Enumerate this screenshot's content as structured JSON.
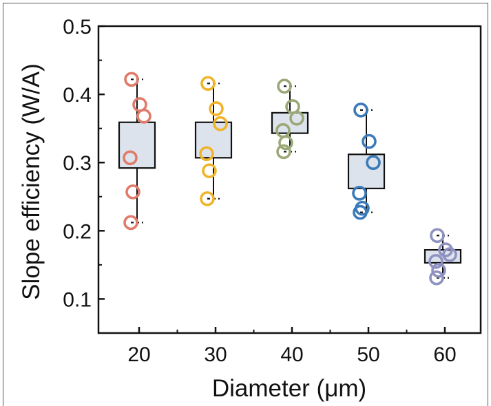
{
  "chart_data": {
    "type": "box",
    "xlabel": "Diameter (μm)",
    "ylabel": "Slope efficiency (W/A)",
    "ylim": [
      0.05,
      0.5
    ],
    "yticks": [
      "0.1",
      "0.2",
      "0.3",
      "0.4",
      "0.5"
    ],
    "categories": [
      "20",
      "30",
      "40",
      "50",
      "60"
    ],
    "groups": [
      {
        "category": "20",
        "color": "#e07b6a",
        "points": [
          0.422,
          0.385,
          0.368,
          0.307,
          0.257,
          0.212
        ],
        "q1": 0.292,
        "q3": 0.359,
        "whisker_low": 0.212,
        "whisker_high": 0.422
      },
      {
        "category": "30",
        "color": "#f0b429",
        "points": [
          0.416,
          0.379,
          0.357,
          0.313,
          0.288,
          0.247
        ],
        "q1": 0.307,
        "q3": 0.359,
        "whisker_low": 0.247,
        "whisker_high": 0.416
      },
      {
        "category": "40",
        "color": "#9aa877",
        "points": [
          0.412,
          0.382,
          0.365,
          0.347,
          0.329,
          0.316
        ],
        "q1": 0.343,
        "q3": 0.373,
        "whisker_low": 0.316,
        "whisker_high": 0.412
      },
      {
        "category": "50",
        "color": "#3b7ab8",
        "points": [
          0.377,
          0.331,
          0.3,
          0.255,
          0.233,
          0.227
        ],
        "q1": 0.262,
        "q3": 0.312,
        "whisker_low": 0.227,
        "whisker_high": 0.377
      },
      {
        "category": "60",
        "color": "#8f92c0",
        "points": [
          0.193,
          0.172,
          0.165,
          0.155,
          0.142,
          0.131
        ],
        "q1": 0.153,
        "q3": 0.172,
        "whisker_low": 0.131,
        "whisker_high": 0.193
      }
    ],
    "box_fill": "#dde3ec",
    "grid": false,
    "legend": "none"
  }
}
